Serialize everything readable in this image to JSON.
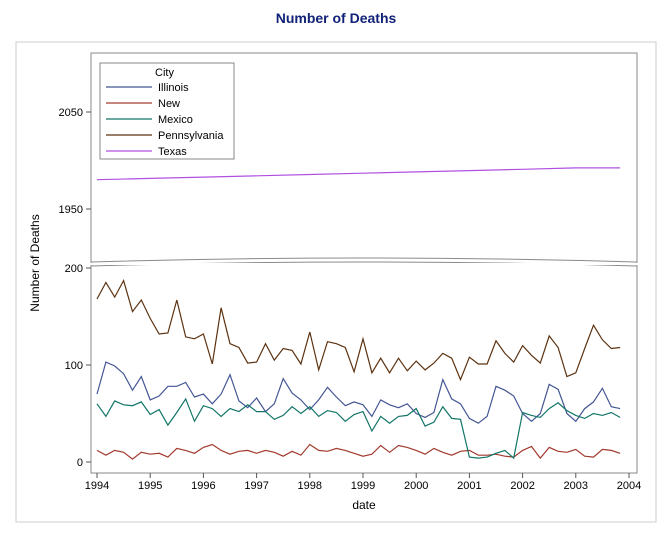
{
  "chart_data": {
    "type": "line",
    "title": "Number of Deaths",
    "xlabel": "date",
    "ylabel": "Number of Deaths",
    "x_axis": {
      "type": "date",
      "range": [
        "1994-01",
        "2004-01"
      ],
      "tick_labels": [
        "1994",
        "1995",
        "1996",
        "1997",
        "1998",
        "1999",
        "2000",
        "2001",
        "2002",
        "2003",
        "2004"
      ]
    },
    "y_axis": {
      "broken": true,
      "upper_segment": {
        "range": [
          1920,
          2080
        ],
        "tick_labels": [
          "1950",
          "2050"
        ]
      },
      "lower_segment": {
        "range": [
          0,
          200
        ],
        "tick_labels": [
          "0",
          "100",
          "200"
        ]
      }
    },
    "grid": false,
    "legend": {
      "title": "City",
      "placement": "top-left inside"
    },
    "series": [
      {
        "name": "Illinois",
        "color": "#445694",
        "x": [
          "1994-01",
          "1994-03",
          "1994-05",
          "1994-07",
          "1994-09",
          "1994-11",
          "1995-01",
          "1995-03",
          "1995-05",
          "1995-07",
          "1995-09",
          "1995-11",
          "1996-01",
          "1996-03",
          "1996-05",
          "1996-07",
          "1996-09",
          "1996-11",
          "1997-01",
          "1997-03",
          "1997-05",
          "1997-07",
          "1997-09",
          "1997-11",
          "1998-01",
          "1998-03",
          "1998-05",
          "1998-07",
          "1998-09",
          "1998-11",
          "1999-01",
          "1999-03",
          "1999-05",
          "1999-07",
          "1999-09",
          "1999-11",
          "2000-01",
          "2000-03",
          "2000-05",
          "2000-07",
          "2000-09",
          "2000-11",
          "2001-01",
          "2001-03",
          "2001-05",
          "2001-07",
          "2001-09",
          "2001-11",
          "2002-01",
          "2002-03",
          "2002-05",
          "2002-07",
          "2002-09",
          "2002-11",
          "2003-01",
          "2003-03",
          "2003-05",
          "2003-07",
          "2003-09",
          "2003-11"
        ],
        "values": [
          70,
          103,
          99,
          91,
          74,
          88,
          64,
          68,
          78,
          78,
          82,
          67,
          70,
          60,
          70,
          90,
          63,
          56,
          66,
          52,
          60,
          86,
          71,
          64,
          54,
          64,
          77,
          67,
          58,
          62,
          59,
          47,
          64,
          59,
          56,
          60,
          50,
          46,
          51,
          85,
          65,
          60,
          45,
          40,
          47,
          78,
          74,
          68,
          50,
          42,
          50,
          80,
          75,
          50,
          42,
          55,
          62,
          76,
          57,
          55
        ]
      },
      {
        "name": "New",
        "color": "#a23a2e",
        "x": [
          "1994-01",
          "1994-03",
          "1994-05",
          "1994-07",
          "1994-09",
          "1994-11",
          "1995-01",
          "1995-03",
          "1995-05",
          "1995-07",
          "1995-09",
          "1995-11",
          "1996-01",
          "1996-03",
          "1996-05",
          "1996-07",
          "1996-09",
          "1996-11",
          "1997-01",
          "1997-03",
          "1997-05",
          "1997-07",
          "1997-09",
          "1997-11",
          "1998-01",
          "1998-03",
          "1998-05",
          "1998-07",
          "1998-09",
          "1998-11",
          "1999-01",
          "1999-03",
          "1999-05",
          "1999-07",
          "1999-09",
          "1999-11",
          "2000-01",
          "2000-03",
          "2000-05",
          "2000-07",
          "2000-09",
          "2000-11",
          "2001-01",
          "2001-03",
          "2001-05",
          "2001-07",
          "2001-09",
          "2001-11",
          "2002-01",
          "2002-03",
          "2002-05",
          "2002-07",
          "2002-09",
          "2002-11",
          "2003-01",
          "2003-03",
          "2003-05",
          "2003-07",
          "2003-09",
          "2003-11"
        ],
        "values": [
          12,
          7,
          12,
          10,
          3,
          10,
          8,
          9,
          5,
          14,
          12,
          9,
          15,
          18,
          12,
          8,
          11,
          12,
          9,
          12,
          10,
          6,
          11,
          7,
          18,
          12,
          11,
          14,
          12,
          9,
          6,
          8,
          17,
          10,
          17,
          15,
          12,
          8,
          14,
          10,
          7,
          11,
          12,
          7,
          7,
          8,
          6,
          5,
          12,
          16,
          4,
          15,
          11,
          10,
          13,
          6,
          5,
          13,
          12,
          9
        ]
      },
      {
        "name": "Mexico",
        "color": "#117567",
        "x": [
          "1994-01",
          "1994-03",
          "1994-05",
          "1994-07",
          "1994-09",
          "1994-11",
          "1995-01",
          "1995-03",
          "1995-05",
          "1995-07",
          "1995-09",
          "1995-11",
          "1996-01",
          "1996-03",
          "1996-05",
          "1996-07",
          "1996-09",
          "1996-11",
          "1997-01",
          "1997-03",
          "1997-05",
          "1997-07",
          "1997-09",
          "1997-11",
          "1998-01",
          "1998-03",
          "1998-05",
          "1998-07",
          "1998-09",
          "1998-11",
          "1999-01",
          "1999-03",
          "1999-05",
          "1999-07",
          "1999-09",
          "1999-11",
          "2000-01",
          "2000-03",
          "2000-05",
          "2000-07",
          "2000-09",
          "2000-11",
          "2001-01",
          "2001-03",
          "2001-05",
          "2001-07",
          "2001-09",
          "2001-11",
          "2002-01",
          "2002-03",
          "2002-05",
          "2002-07",
          "2002-09",
          "2002-11",
          "2003-01",
          "2003-03",
          "2003-05",
          "2003-07",
          "2003-09",
          "2003-11"
        ],
        "values": [
          60,
          47,
          63,
          59,
          58,
          62,
          49,
          54,
          38,
          51,
          65,
          42,
          58,
          55,
          47,
          55,
          52,
          59,
          52,
          52,
          44,
          48,
          57,
          50,
          57,
          47,
          53,
          51,
          42,
          49,
          52,
          32,
          47,
          40,
          47,
          48,
          55,
          37,
          41,
          57,
          45,
          44,
          5,
          4,
          5,
          9,
          12,
          4,
          51,
          48,
          46,
          55,
          61,
          53,
          48,
          45,
          50,
          48,
          51,
          46
        ]
      },
      {
        "name": "Pennsylvania",
        "color": "#5c3210",
        "x": [
          "1994-01",
          "1994-03",
          "1994-05",
          "1994-07",
          "1994-09",
          "1994-11",
          "1995-01",
          "1995-03",
          "1995-05",
          "1995-07",
          "1995-09",
          "1995-11",
          "1996-01",
          "1996-03",
          "1996-05",
          "1996-07",
          "1996-09",
          "1996-11",
          "1997-01",
          "1997-03",
          "1997-05",
          "1997-07",
          "1997-09",
          "1997-11",
          "1998-01",
          "1998-03",
          "1998-05",
          "1998-07",
          "1998-09",
          "1998-11",
          "1999-01",
          "1999-03",
          "1999-05",
          "1999-07",
          "1999-09",
          "1999-11",
          "2000-01",
          "2000-03",
          "2000-05",
          "2000-07",
          "2000-09",
          "2000-11",
          "2001-01",
          "2001-03",
          "2001-05",
          "2001-07",
          "2001-09",
          "2001-11",
          "2002-01",
          "2002-03",
          "2002-05",
          "2002-07",
          "2002-09",
          "2002-11",
          "2003-01",
          "2003-03",
          "2003-05",
          "2003-07",
          "2003-09",
          "2003-11"
        ],
        "values": [
          168,
          185,
          170,
          187,
          155,
          167,
          148,
          132,
          133,
          167,
          129,
          127,
          132,
          101,
          159,
          122,
          118,
          102,
          103,
          122,
          105,
          117,
          115,
          101,
          134,
          95,
          124,
          122,
          118,
          93,
          127,
          92,
          107,
          92,
          107,
          94,
          104,
          95,
          102,
          112,
          107,
          85,
          108,
          101,
          101,
          125,
          112,
          103,
          120,
          110,
          102,
          130,
          118,
          88,
          92,
          117,
          141,
          126,
          117,
          118
        ]
      },
      {
        "name": "Texas",
        "color": "#b050e0",
        "x": [
          "1994-01",
          "1995-01",
          "1996-01",
          "1997-01",
          "1998-01",
          "1999-01",
          "2000-01",
          "2001-01",
          "2002-01",
          "2003-01",
          "2003-11"
        ],
        "values": [
          1983,
          1984,
          1985,
          1986,
          1987,
          1988,
          1989,
          1990,
          1991,
          1992,
          1992
        ]
      }
    ]
  }
}
